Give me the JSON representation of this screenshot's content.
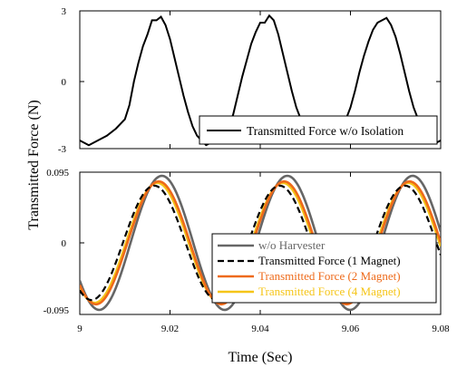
{
  "chart_data": [
    {
      "type": "line",
      "panel": "top",
      "ylim": [
        -3,
        3
      ],
      "xlim": [
        9,
        9.08
      ],
      "yticks": [
        "3",
        "0",
        "-3"
      ],
      "xtick_labels_shown": false,
      "grid": false,
      "legend_placement": "bottom-right",
      "series": [
        {
          "name": "Transmitted Force w/o Isolation",
          "color": "#000000",
          "style": "solid",
          "x": [
            9.0,
            9.002,
            9.004,
            9.006,
            9.008,
            9.01,
            9.011,
            9.012,
            9.013,
            9.014,
            9.015,
            9.016,
            9.017,
            9.018,
            9.019,
            9.02,
            9.021,
            9.022,
            9.023,
            9.024,
            9.025,
            9.026,
            9.027,
            9.028,
            9.029,
            9.03,
            9.031,
            9.032,
            9.033,
            9.034,
            9.035,
            9.036,
            9.037,
            9.038,
            9.039,
            9.04,
            9.041,
            9.042,
            9.043,
            9.044,
            9.045,
            9.046,
            9.047,
            9.048,
            9.049,
            9.05,
            9.051,
            9.052,
            9.053,
            9.054,
            9.055,
            9.056,
            9.057,
            9.058,
            9.059,
            9.06,
            9.061,
            9.062,
            9.063,
            9.064,
            9.065,
            9.066,
            9.067,
            9.068,
            9.069,
            9.07,
            9.071,
            9.072,
            9.073,
            9.074,
            9.075,
            9.076,
            9.077,
            9.078,
            9.079,
            9.08
          ],
          "y": [
            -2.5,
            -2.7,
            -2.5,
            -2.3,
            -2.0,
            -1.6,
            -1.0,
            0.0,
            0.8,
            1.5,
            2.0,
            2.6,
            2.6,
            2.75,
            2.4,
            1.8,
            1.0,
            0.2,
            -0.6,
            -1.3,
            -1.9,
            -2.3,
            -2.5,
            -2.7,
            -2.6,
            -2.6,
            -2.4,
            -2.2,
            -1.9,
            -1.4,
            -0.6,
            0.2,
            0.9,
            1.6,
            2.1,
            2.5,
            2.5,
            2.8,
            2.6,
            2.0,
            1.2,
            0.4,
            -0.4,
            -1.1,
            -1.6,
            -2.0,
            -2.3,
            -2.4,
            -2.4,
            -2.6,
            -2.6,
            -2.5,
            -2.3,
            -2.0,
            -1.6,
            -1.1,
            -0.4,
            0.4,
            1.1,
            1.7,
            2.2,
            2.5,
            2.6,
            2.7,
            2.4,
            1.9,
            1.2,
            0.4,
            -0.4,
            -1.1,
            -1.6,
            -2.0,
            -2.3,
            -2.5,
            -2.6,
            -2.5
          ]
        }
      ]
    },
    {
      "type": "line",
      "panel": "bottom",
      "ylim": [
        -0.095,
        0.095
      ],
      "xlim": [
        9,
        9.08
      ],
      "yticks": [
        "0.095",
        "0",
        "-0.095"
      ],
      "xticks": [
        9,
        9.02,
        9.04,
        9.06,
        9.08
      ],
      "xtick_labels": [
        "9",
        "9.02",
        "9.04",
        "9.06",
        "9.08"
      ],
      "grid": false,
      "legend_placement": "bottom-right",
      "period": 0.0278,
      "series": [
        {
          "name": "w/o Harvester",
          "color": "#666666",
          "style": "solid",
          "amplitude": 0.095,
          "peak_x": 9.0182
        },
        {
          "name": "Transmitted Force (1 Magnet)",
          "color": "#000000",
          "style": "dashed",
          "amplitude": 0.081,
          "peak_x": 9.0165
        },
        {
          "name": "Transmitted Force (2 Magnet)",
          "color": "#EE6A1A",
          "style": "solid",
          "amplitude": 0.087,
          "peak_x": 9.0175
        },
        {
          "name": "Transmitted Force (4 Magnet)",
          "color": "#F5C518",
          "style": "solid",
          "amplitude": 0.085,
          "peak_x": 9.0172
        }
      ]
    }
  ],
  "labels": {
    "ylabel": "Transmitted Force (N)",
    "xlabel": "Time (Sec)"
  }
}
